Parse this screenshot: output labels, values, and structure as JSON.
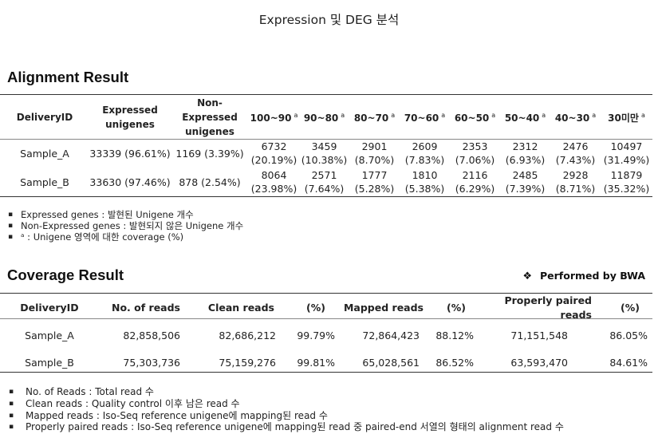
{
  "page_title": "Expression 및 DEG 분석",
  "alignment": {
    "title": "Alignment Result",
    "headers": [
      {
        "label": "DeliveryID",
        "sup": ""
      },
      {
        "label": "Expressed unigenes",
        "sup": ""
      },
      {
        "label": "Non-Expressed unigenes",
        "sup": ""
      },
      {
        "label": "100~90",
        "sup": "a"
      },
      {
        "label": "90~80",
        "sup": "a"
      },
      {
        "label": "80~70",
        "sup": "a"
      },
      {
        "label": "70~60",
        "sup": "a"
      },
      {
        "label": "60~50",
        "sup": "a"
      },
      {
        "label": "50~40",
        "sup": "a"
      },
      {
        "label": "40~30",
        "sup": "a"
      },
      {
        "label": "30미만",
        "sup": "a"
      }
    ],
    "rows": [
      {
        "id": "Sample_A",
        "expressed": "33339 (96.61%)",
        "non_expressed": "1169 (3.39%)",
        "bins": [
          {
            "count": "6732",
            "pct": "(20.19%)"
          },
          {
            "count": "3459",
            "pct": "(10.38%)"
          },
          {
            "count": "2901",
            "pct": "(8.70%)"
          },
          {
            "count": "2609",
            "pct": "(7.83%)"
          },
          {
            "count": "2353",
            "pct": "(7.06%)"
          },
          {
            "count": "2312",
            "pct": "(6.93%)"
          },
          {
            "count": "2476",
            "pct": "(7.43%)"
          },
          {
            "count": "10497",
            "pct": "(31.49%)"
          }
        ]
      },
      {
        "id": "Sample_B",
        "expressed": "33630 (97.46%)",
        "non_expressed": "878 (2.54%)",
        "bins": [
          {
            "count": "8064",
            "pct": "(23.98%)"
          },
          {
            "count": "2571",
            "pct": "(7.64%)"
          },
          {
            "count": "1777",
            "pct": "(5.28%)"
          },
          {
            "count": "1810",
            "pct": "(5.38%)"
          },
          {
            "count": "2116",
            "pct": "(6.29%)"
          },
          {
            "count": "2485",
            "pct": "(7.39%)"
          },
          {
            "count": "2928",
            "pct": "(8.71%)"
          },
          {
            "count": "11879",
            "pct": "(35.32%)"
          }
        ]
      }
    ],
    "notes": [
      "Expressed genes : 발현된 Unigene 개수",
      "Non-Expressed genes : 발현되지 않은 Unigene 개수",
      "ᵃ : Unigene 영역에 대한 coverage (%)"
    ]
  },
  "coverage": {
    "title": "Coverage Result",
    "performed_symbol": "❖",
    "performed": "Performed by BWA",
    "headers": [
      "DeliveryID",
      "No. of reads",
      "Clean reads",
      "(%)",
      "Mapped reads",
      "(%)",
      "Properly paired reads",
      "(%)"
    ],
    "rows": [
      [
        "Sample_A",
        "82,858,506",
        "82,686,212",
        "99.79%",
        "72,864,423",
        "88.12%",
        "71,151,548",
        "86.05%"
      ],
      [
        "Sample_B",
        "75,303,736",
        "75,159,276",
        "99.81%",
        "65,028,561",
        "86.52%",
        "63,593,470",
        "84.61%"
      ]
    ],
    "notes": [
      "No. of Reads : Total read 수",
      "Clean reads : Quality control 이후 남은 read 수",
      "Mapped reads : Iso-Seq reference unigene에 mapping된 read 수",
      "Properly paired reads : Iso-Seq reference unigene에 mapping된 read 중 paired-end 서열의 형태의 alignment read 수"
    ]
  }
}
